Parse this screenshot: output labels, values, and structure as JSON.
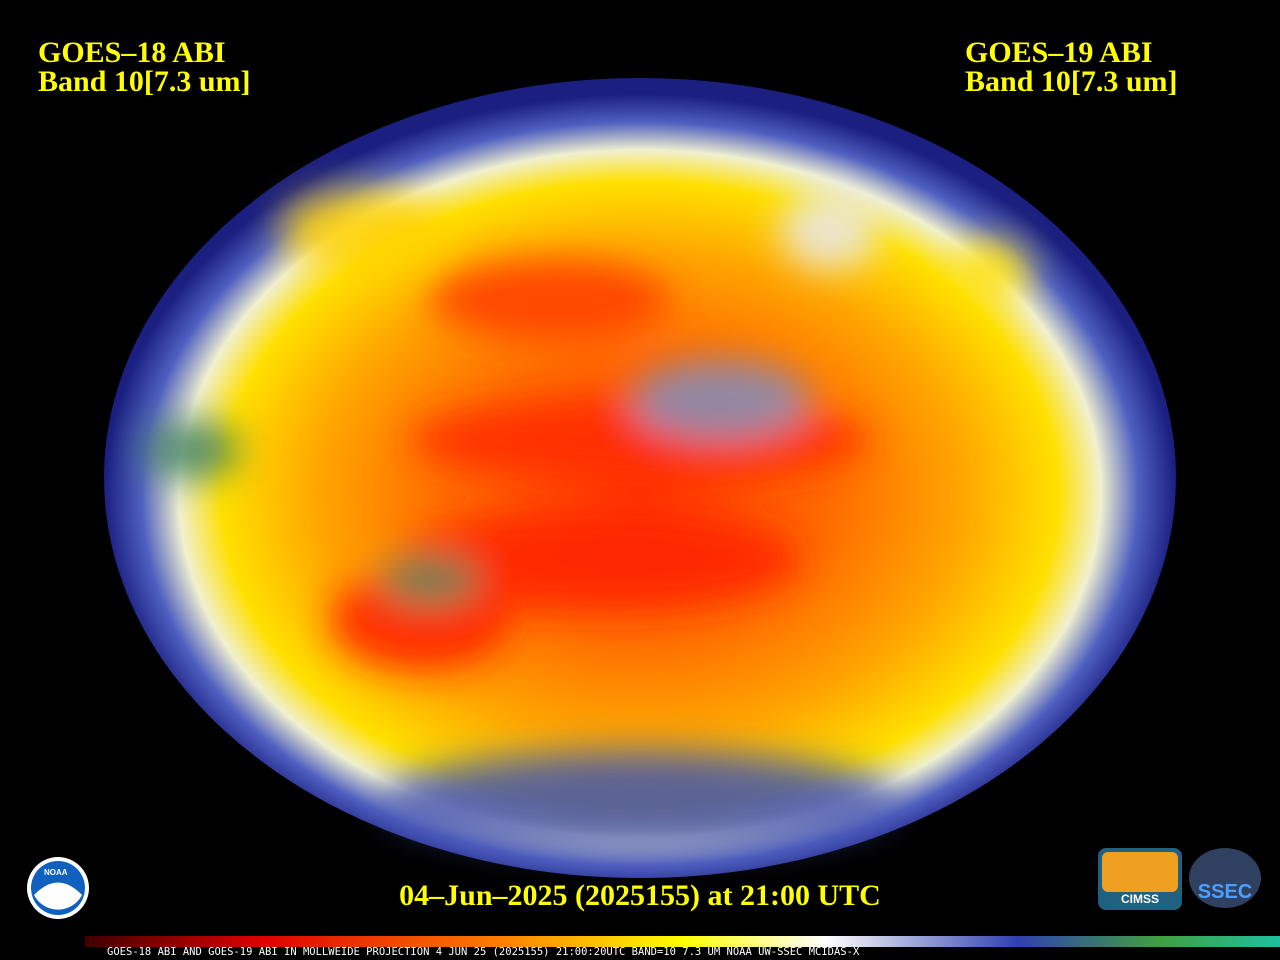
{
  "header": {
    "left": {
      "title": "GOES–18 ABI",
      "band": "Band 10[7.3 um]"
    },
    "right": {
      "title": "GOES–19 ABI",
      "band": "Band 10[7.3 um]"
    }
  },
  "timestamp": "04–Jun–2025 (2025155) at 21:00 UTC",
  "logos": {
    "noaa": "NOAA",
    "cimss": "CIMSS",
    "ssec": "SSEC"
  },
  "footer": "GOES-18 ABI AND GOES-19 ABI IN MOLLWEIDE PROJECTION 4 JUN 25 (2025155) 21:00:20UTC BAND=10 7.3 UM NOAA UW-SSEC MCIDAS-X"
}
